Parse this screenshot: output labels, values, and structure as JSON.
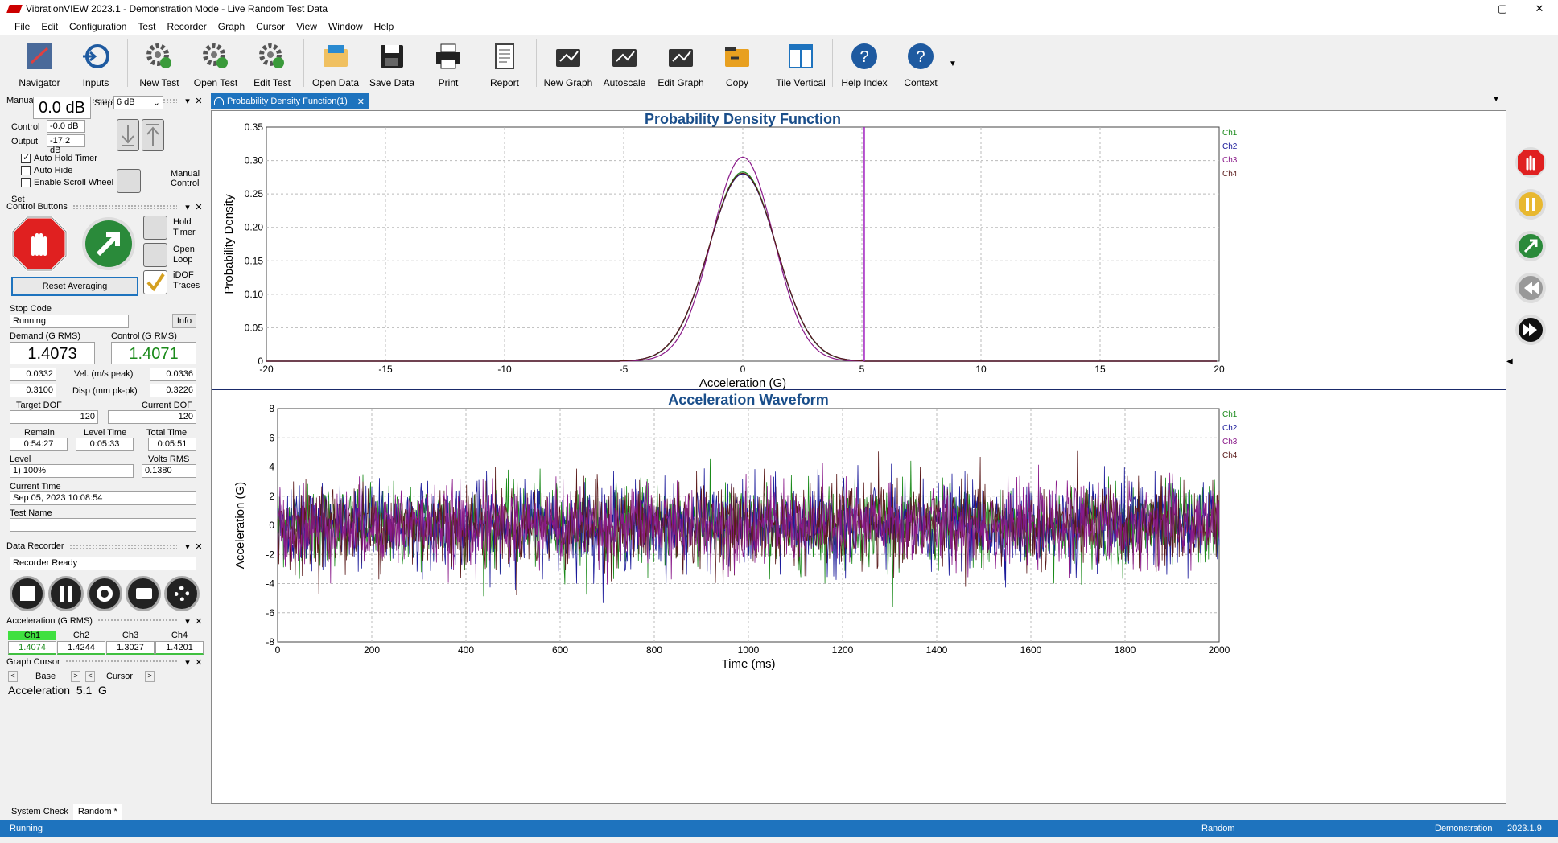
{
  "window": {
    "title": "VibrationVIEW 2023.1 - Demonstration Mode - Live Random Test Data",
    "min": "—",
    "max": "▢",
    "close": "✕"
  },
  "menu": [
    "File",
    "Edit",
    "Configuration",
    "Test",
    "Recorder",
    "Graph",
    "Cursor",
    "View",
    "Window",
    "Help"
  ],
  "toolbar": [
    {
      "label": "Navigator",
      "icon": "navigator-icon"
    },
    {
      "label": "Inputs",
      "icon": "inputs-icon"
    },
    {
      "label": "New Test",
      "icon": "new-test-icon"
    },
    {
      "label": "Open Test",
      "icon": "open-test-icon"
    },
    {
      "label": "Edit Test",
      "icon": "edit-test-icon"
    },
    {
      "label": "Open Data",
      "icon": "open-data-icon"
    },
    {
      "label": "Save Data",
      "icon": "save-data-icon"
    },
    {
      "label": "Print",
      "icon": "print-icon"
    },
    {
      "label": "Report",
      "icon": "report-icon"
    },
    {
      "label": "New Graph",
      "icon": "new-graph-icon"
    },
    {
      "label": "Autoscale",
      "icon": "autoscale-icon"
    },
    {
      "label": "Edit Graph",
      "icon": "edit-graph-icon"
    },
    {
      "label": "Copy",
      "icon": "copy-icon"
    },
    {
      "label": "Tile Vertical",
      "icon": "tile-vertical-icon"
    },
    {
      "label": "Help Index",
      "icon": "help-index-icon"
    },
    {
      "label": "Context",
      "icon": "context-icon"
    }
  ],
  "manual": {
    "header": "Manual Buttons",
    "set_label": "Set",
    "set_value": "0.0 dB",
    "step_label": "Step",
    "step_value": "6 dB",
    "control_label": "Control",
    "control_value": "-0.0 dB",
    "output_label": "Output",
    "output_value": "-17.2 dB",
    "auto_hold": "Auto Hold Timer",
    "auto_hide": "Auto Hide",
    "scroll": "Enable Scroll Wheel",
    "manual_control": "Manual Control"
  },
  "control": {
    "header": "Control Buttons",
    "hold_timer": "Hold Timer",
    "open_loop": "Open Loop",
    "idof": "iDOF Traces",
    "reset": "Reset Averaging",
    "stop_code_label": "Stop Code",
    "stop_code": "Running",
    "info": "Info",
    "demand_label": "Demand (G RMS)",
    "demand": "1.4073",
    "control_label": "Control (G RMS)",
    "control": "1.4071",
    "vel_label": "Vel. (m/s peak)",
    "vel_l": "0.0332",
    "vel_r": "0.0336",
    "disp_label": "Disp (mm pk-pk)",
    "disp_l": "0.3100",
    "disp_r": "0.3226",
    "target_dof_label": "Target DOF",
    "target_dof": "120",
    "current_dof_label": "Current DOF",
    "current_dof": "120",
    "remain_label": "Remain",
    "remain": "0:54:27",
    "level_time_label": "Level Time",
    "level_time": "0:05:33",
    "total_time_label": "Total Time",
    "total_time": "0:05:51",
    "level_label": "Level",
    "level": "1) 100%",
    "volts_label": "Volts RMS",
    "volts": "0.1380",
    "current_time_label": "Current Time",
    "current_time": "Sep 05, 2023 10:08:54",
    "test_name_label": "Test Name",
    "test_name": ""
  },
  "recorder": {
    "header": "Data Recorder",
    "status": "Recorder Ready"
  },
  "accel": {
    "header": "Acceleration (G RMS)",
    "channels": [
      {
        "name": "Ch1",
        "value": "1.4074"
      },
      {
        "name": "Ch2",
        "value": "1.4244"
      },
      {
        "name": "Ch3",
        "value": "1.3027"
      },
      {
        "name": "Ch4",
        "value": "1.4201"
      }
    ]
  },
  "cursor": {
    "header": "Graph Cursor",
    "base": "Base",
    "cursor": "Cursor",
    "readout": "Acceleration  5.1  G"
  },
  "bottom_tabs": [
    "System Check",
    "Random *"
  ],
  "status": {
    "left": "Running",
    "mid": "Random",
    "right1": "Demonstration",
    "right2": "2023.1.9"
  },
  "tab": {
    "label": "Probability Density Function(1)"
  },
  "colors": {
    "ch1": "#1a8a1a",
    "ch2": "#1a1a9a",
    "ch3": "#8a1a8a",
    "ch4": "#5a1a1a",
    "title": "#1a4e8a"
  },
  "chart_data": [
    {
      "type": "line",
      "title": "Probability Density Function",
      "xlabel": "Acceleration (G)",
      "ylabel": "Probability Density",
      "xlim": [
        -20,
        20
      ],
      "ylim": [
        0,
        0.35
      ],
      "xticks": [
        "-20",
        "-15",
        "-10",
        "-5",
        "0",
        "5",
        "10",
        "15",
        "20"
      ],
      "yticks": [
        "0",
        "0.05",
        "0.10",
        "0.15",
        "0.20",
        "0.25",
        "0.30",
        "0.35"
      ],
      "cursor_x": 5.1,
      "legend": [
        "Ch1",
        "Ch2",
        "Ch3",
        "Ch4"
      ],
      "series": [
        {
          "name": "Ch1",
          "peak": 0.283,
          "sigma": 1.41
        },
        {
          "name": "Ch2",
          "peak": 0.28,
          "sigma": 1.42
        },
        {
          "name": "Ch3",
          "peak": 0.305,
          "sigma": 1.3
        },
        {
          "name": "Ch4",
          "peak": 0.281,
          "sigma": 1.42
        }
      ]
    },
    {
      "type": "line",
      "title": "Acceleration Waveform",
      "xlabel": "Time (ms)",
      "ylabel": "Acceleration (G)",
      "xlim": [
        0,
        2000
      ],
      "ylim": [
        -8,
        8
      ],
      "xticks": [
        "0",
        "200",
        "400",
        "600",
        "800",
        "1000",
        "1200",
        "1400",
        "1600",
        "1800",
        "2000"
      ],
      "yticks": [
        "-8",
        "-6",
        "-4",
        "-2",
        "0",
        "2",
        "4",
        "6",
        "8"
      ],
      "legend": [
        "Ch1",
        "Ch2",
        "Ch3",
        "Ch4"
      ]
    }
  ]
}
